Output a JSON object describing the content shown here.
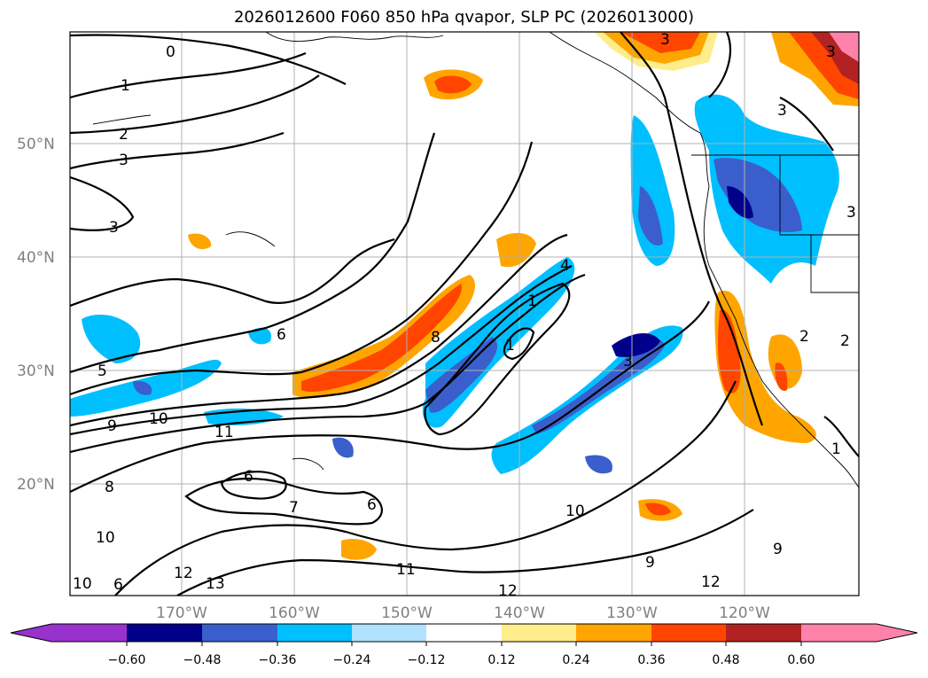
{
  "title": "2026012600 F060 850 hPa qvapor, SLP PC (2026013000)",
  "lat_labels": [
    "50°N",
    "40°N",
    "30°N",
    "20°N"
  ],
  "lon_labels": [
    "170°W",
    "160°W",
    "150°W",
    "140°W",
    "130°W",
    "120°W"
  ],
  "colorbar": {
    "colors": [
      "#9932cc",
      "#00008b",
      "#3a5fcd",
      "#00bfff",
      "#b0e2ff",
      "#ffffff",
      "#ffec8b",
      "#ffa500",
      "#ff4500",
      "#b22222",
      "#ff82ab"
    ],
    "ticks": [
      "−0.60",
      "−0.48",
      "−0.36",
      "−0.24",
      "−0.12",
      "0.12",
      "0.24",
      "0.36",
      "0.48",
      "0.60"
    ]
  },
  "contour_labels": [
    "0",
    "1",
    "2",
    "3",
    "3",
    "5",
    "6",
    "9",
    "10",
    "11",
    "6",
    "7",
    "6",
    "8",
    "10",
    "6",
    "12",
    "13",
    "10",
    "11",
    "12",
    "12",
    "9",
    "3",
    "3",
    "3",
    "4",
    "2",
    "1",
    "3",
    "8",
    "1",
    "2",
    "1",
    "3",
    "10",
    "9"
  ]
}
